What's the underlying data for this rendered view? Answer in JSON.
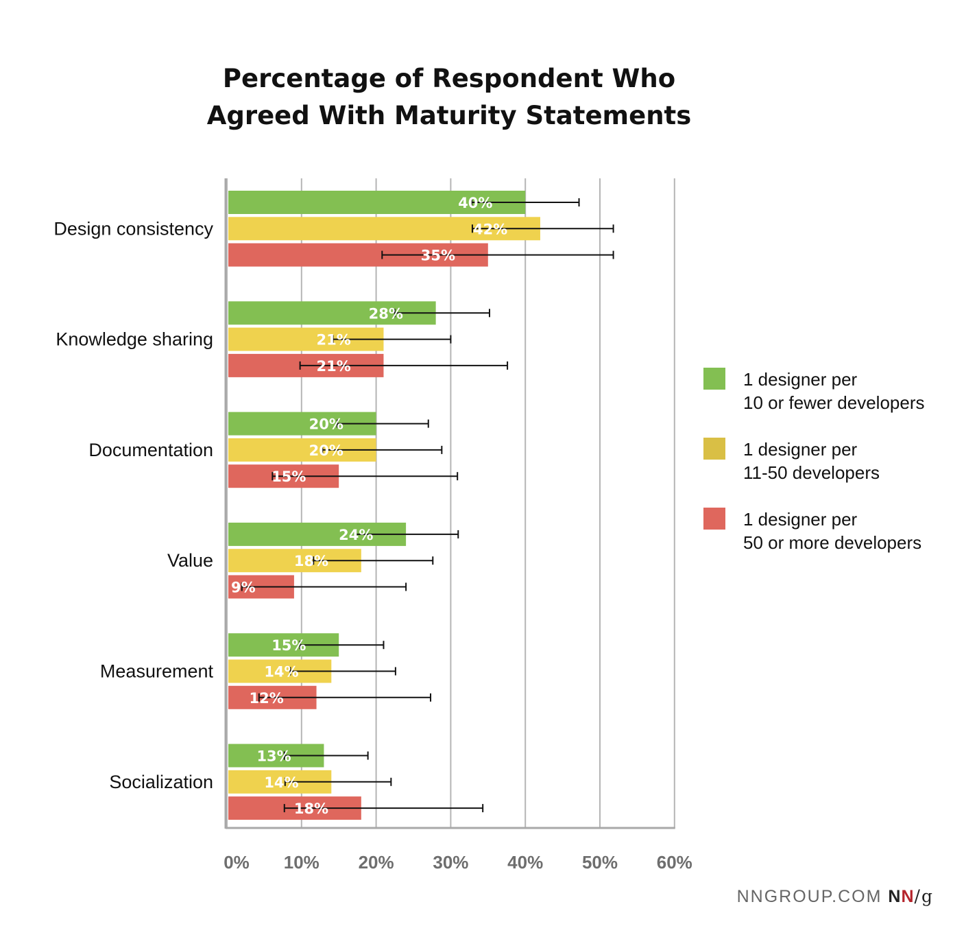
{
  "chart_data": {
    "type": "bar",
    "orientation": "horizontal",
    "title": [
      "Percentage of Respondent Who",
      "Agreed With Maturity Statements"
    ],
    "categories": [
      "Design consistency",
      "Knowledge sharing",
      "Documentation",
      "Value",
      "Measurement",
      "Socialization"
    ],
    "series": [
      {
        "name": [
          "1 designer per",
          "10 or fewer developers"
        ],
        "color": "#83bf52",
        "values": [
          40,
          28,
          20,
          24,
          15,
          13
        ],
        "labels": [
          "40%",
          "28%",
          "20%",
          "24%",
          "15%",
          "13%"
        ],
        "error_low": [
          32.8,
          22.5,
          14.8,
          17.3,
          9.8,
          7.7
        ],
        "error_high": [
          47.2,
          35.2,
          27.0,
          31.0,
          21.0,
          18.9
        ]
      },
      {
        "name": [
          "1 designer per",
          "11-50 developers"
        ],
        "color": "#efd24e",
        "values": [
          42,
          21,
          20,
          18,
          14,
          14
        ],
        "labels": [
          "42%",
          "21%",
          "20%",
          "18%",
          "14%",
          "14%"
        ],
        "error_low": [
          32.9,
          14.2,
          12.8,
          11.6,
          8.5,
          7.8
        ],
        "error_high": [
          51.8,
          30.0,
          28.8,
          27.6,
          22.6,
          22.0
        ]
      },
      {
        "name": [
          "1 designer per",
          "50 or more developers"
        ],
        "color": "#df675d",
        "values": [
          35,
          21,
          15,
          9,
          12,
          18
        ],
        "labels": [
          "35%",
          "21%",
          "15%",
          "9%",
          "12%",
          "18%"
        ],
        "error_low": [
          20.8,
          9.8,
          6.1,
          2.0,
          4.3,
          7.7
        ],
        "error_high": [
          51.8,
          37.6,
          30.9,
          24.0,
          27.3,
          34.3
        ]
      }
    ],
    "xlim": [
      0,
      60
    ],
    "xticks": [
      "0%",
      "10%",
      "20%",
      "30%",
      "40%",
      "50%",
      "60%"
    ],
    "xtick_values": [
      0,
      10,
      20,
      30,
      40,
      50,
      60
    ],
    "grid": true,
    "legend_position": "right",
    "legend_swatch_colors": [
      "#83bf52",
      "#d9bf45",
      "#df675d"
    ]
  },
  "footer": {
    "site": "NNGROUP.COM",
    "logo_n1": "N",
    "logo_n2": "N",
    "logo_slash": "/",
    "logo_g": "g"
  }
}
